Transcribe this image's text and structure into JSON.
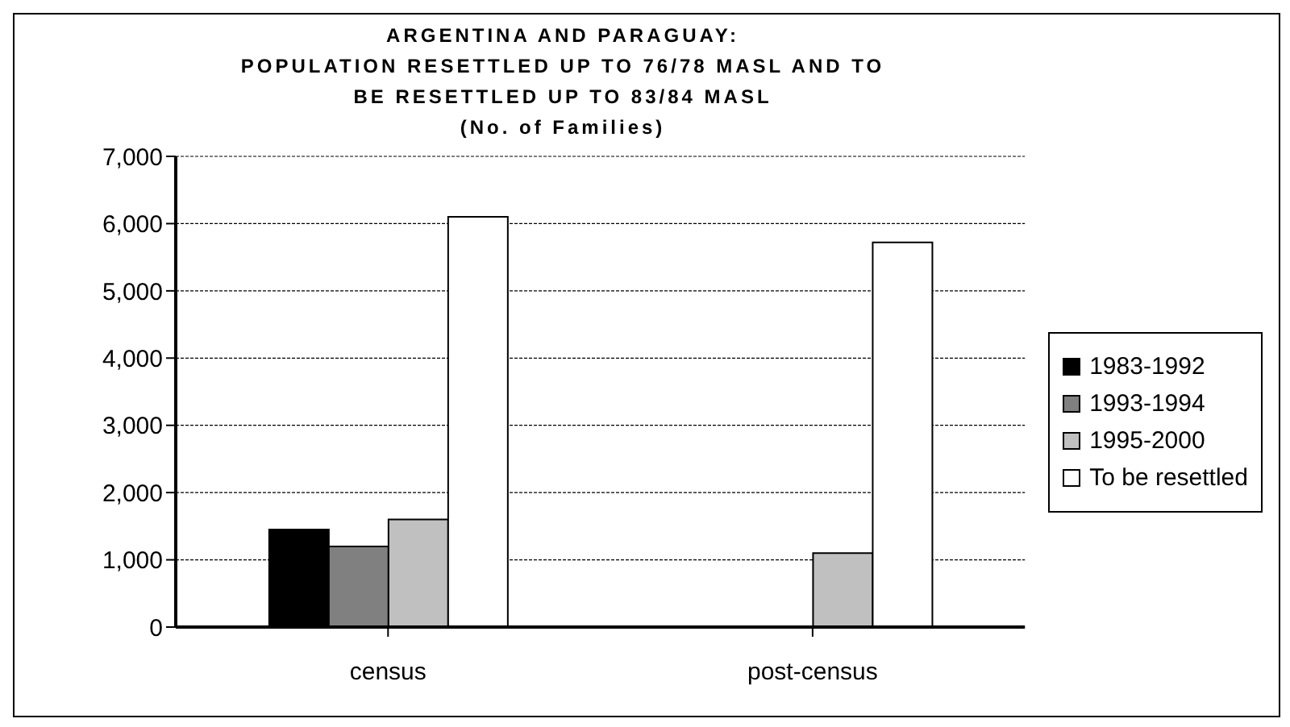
{
  "chart_data": {
    "type": "bar",
    "title": "ARGENTINA AND PARAGUAY:\nPOPULATION RESETTLED UP TO 76/78 MASL AND TO\nBE RESETTLED UP TO 83/84 MASL\n(No. of Families)",
    "categories": [
      "census",
      "post-census"
    ],
    "series": [
      {
        "name": "1983-1992",
        "color": "#000000",
        "values": [
          1450,
          0
        ]
      },
      {
        "name": "1993-1994",
        "color": "#808080",
        "values": [
          1200,
          0
        ]
      },
      {
        "name": "1995-2000",
        "color": "#c0c0c0",
        "values": [
          1600,
          1100
        ]
      },
      {
        "name": "To be resettled",
        "color": "#ffffff",
        "values": [
          6100,
          5720
        ]
      }
    ],
    "ylim": [
      0,
      7000
    ],
    "yticks": [
      {
        "value": 0,
        "label": "0"
      },
      {
        "value": 1000,
        "label": "1,000"
      },
      {
        "value": 2000,
        "label": "2,000"
      },
      {
        "value": 3000,
        "label": "3,000"
      },
      {
        "value": 4000,
        "label": "4,000"
      },
      {
        "value": 5000,
        "label": "5,000"
      },
      {
        "value": 6000,
        "label": "6,000"
      },
      {
        "value": 7000,
        "label": "7,000"
      }
    ],
    "grid": "y",
    "legend": "right"
  }
}
